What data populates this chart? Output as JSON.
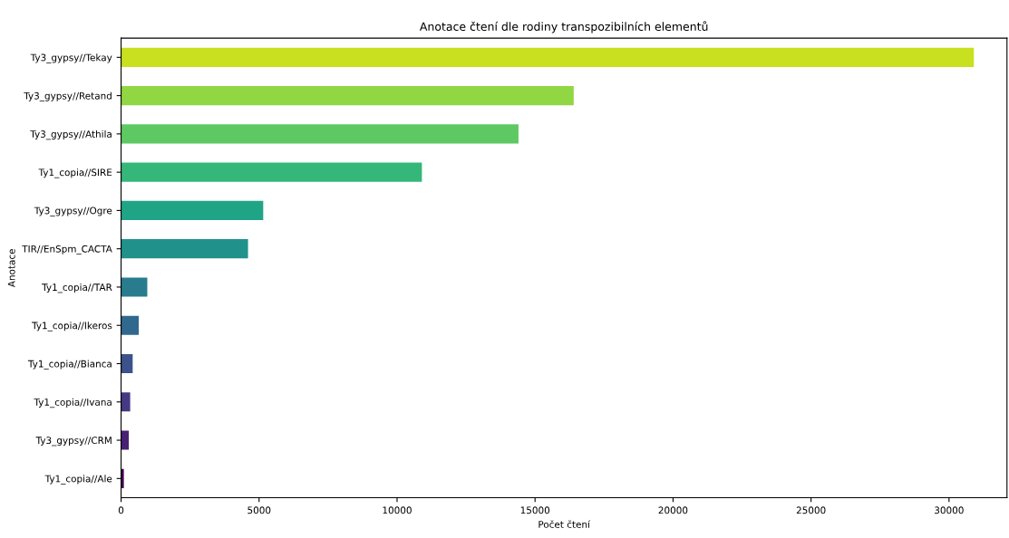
{
  "chart_data": {
    "type": "bar",
    "orientation": "horizontal",
    "title": "Anotace čtení dle rodiny transpozibilních elementů",
    "xlabel": "Počet čtení",
    "ylabel": "Anotace",
    "categories": [
      "Ty3_gypsy//Tekay",
      "Ty3_gypsy//Retand",
      "Ty3_gypsy//Athila",
      "Ty1_copia//SIRE",
      "Ty3_gypsy//Ogre",
      "TIR//EnSpm_CACTA",
      "Ty1_copia//TAR",
      "Ty1_copia//Ikeros",
      "Ty1_copia//Bianca",
      "Ty1_copia//Ivana",
      "Ty3_gypsy//CRM",
      "Ty1_copia//Ale"
    ],
    "values": [
      30900,
      16400,
      14400,
      10900,
      5150,
      4600,
      950,
      640,
      420,
      330,
      280,
      100
    ],
    "colors": [
      "#c8e020",
      "#90d743",
      "#5ec962",
      "#35b779",
      "#20a486",
      "#21918c",
      "#287c8e",
      "#31688e",
      "#3b528b",
      "#443983",
      "#482173",
      "#440154"
    ],
    "xlim": [
      0,
      32100
    ],
    "xticks": [
      0,
      5000,
      10000,
      15000,
      20000,
      25000,
      30000
    ],
    "grid": false,
    "legend": false
  }
}
